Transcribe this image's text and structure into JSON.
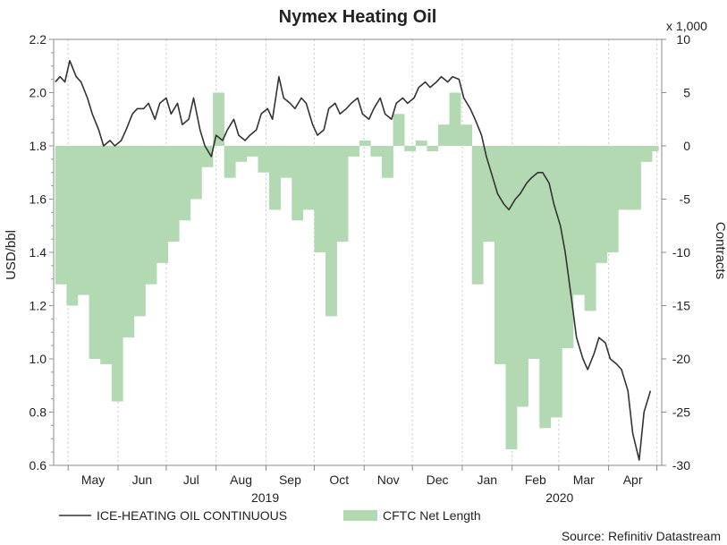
{
  "chart_data": {
    "type": "line+bar",
    "title": "Nymex Heating Oil",
    "y_left_label": "USD/bbl",
    "y_right_label": "Contracts",
    "y_right_multiplier": "x 1,000",
    "y_left_ticks": [
      "0.6",
      "0.8",
      "1.0",
      "1.2",
      "1.4",
      "1.6",
      "1.8",
      "2.0",
      "2.2"
    ],
    "y_right_ticks": [
      "-30",
      "-25",
      "-20",
      "-15",
      "-10",
      "-5",
      "0",
      "5",
      "10"
    ],
    "ylim_left": [
      0.6,
      2.2
    ],
    "ylim_right": [
      -30,
      10
    ],
    "x_month_labels": [
      "May",
      "Jun",
      "Jul",
      "Aug",
      "Sep",
      "Oct",
      "Nov",
      "Dec",
      "Jan",
      "Feb",
      "Mar",
      "Apr"
    ],
    "x_year_labels": [
      "2019",
      "2020"
    ],
    "grid": true,
    "legend_position": "bottom",
    "source": "Source: Refinitiv Datastream",
    "colors": {
      "line": "#333333",
      "bar": "#b3d9b3",
      "grid": "#c8c8c8"
    },
    "series": [
      {
        "name": "ICE-HEATING OIL CONTINUOUS",
        "type": "line",
        "axis": "left",
        "x": [
          "2019-04-23",
          "2019-04-26",
          "2019-04-29",
          "2019-05-02",
          "2019-05-06",
          "2019-05-09",
          "2019-05-13",
          "2019-05-16",
          "2019-05-20",
          "2019-05-23",
          "2019-05-27",
          "2019-05-30",
          "2019-06-03",
          "2019-06-06",
          "2019-06-10",
          "2019-06-13",
          "2019-06-17",
          "2019-06-20",
          "2019-06-24",
          "2019-06-27",
          "2019-07-01",
          "2019-07-04",
          "2019-07-08",
          "2019-07-11",
          "2019-07-15",
          "2019-07-18",
          "2019-07-22",
          "2019-07-25",
          "2019-07-29",
          "2019-08-01",
          "2019-08-05",
          "2019-08-08",
          "2019-08-12",
          "2019-08-15",
          "2019-08-19",
          "2019-08-22",
          "2019-08-26",
          "2019-08-29",
          "2019-09-02",
          "2019-09-05",
          "2019-09-09",
          "2019-09-12",
          "2019-09-16",
          "2019-09-19",
          "2019-09-23",
          "2019-09-26",
          "2019-09-30",
          "2019-10-03",
          "2019-10-07",
          "2019-10-10",
          "2019-10-14",
          "2019-10-17",
          "2019-10-21",
          "2019-10-24",
          "2019-10-28",
          "2019-10-31",
          "2019-11-04",
          "2019-11-07",
          "2019-11-11",
          "2019-11-14",
          "2019-11-18",
          "2019-11-21",
          "2019-11-25",
          "2019-11-28",
          "2019-12-02",
          "2019-12-05",
          "2019-12-09",
          "2019-12-12",
          "2019-12-16",
          "2019-12-19",
          "2019-12-23",
          "2019-12-26",
          "2019-12-30",
          "2020-01-02",
          "2020-01-06",
          "2020-01-09",
          "2020-01-13",
          "2020-01-16",
          "2020-01-20",
          "2020-01-23",
          "2020-01-27",
          "2020-01-30",
          "2020-02-03",
          "2020-02-06",
          "2020-02-10",
          "2020-02-13",
          "2020-02-17",
          "2020-02-20",
          "2020-02-24",
          "2020-02-27",
          "2020-03-02",
          "2020-03-05",
          "2020-03-09",
          "2020-03-12",
          "2020-03-16",
          "2020-03-19",
          "2020-03-23",
          "2020-03-26",
          "2020-03-30",
          "2020-04-02",
          "2020-04-06",
          "2020-04-09",
          "2020-04-13",
          "2020-04-16",
          "2020-04-20",
          "2020-04-23",
          "2020-04-27"
        ],
        "values": [
          2.04,
          2.06,
          2.04,
          2.12,
          2.06,
          2.04,
          1.98,
          1.92,
          1.86,
          1.8,
          1.82,
          1.8,
          1.82,
          1.86,
          1.92,
          1.94,
          1.94,
          1.96,
          1.9,
          1.96,
          1.98,
          1.92,
          1.96,
          1.88,
          1.9,
          1.98,
          1.86,
          1.8,
          1.76,
          1.84,
          1.82,
          1.86,
          1.9,
          1.84,
          1.82,
          1.84,
          1.86,
          1.92,
          1.94,
          1.9,
          2.06,
          1.98,
          1.96,
          1.94,
          1.98,
          1.96,
          1.88,
          1.84,
          1.86,
          1.94,
          1.96,
          1.92,
          1.94,
          1.96,
          1.98,
          1.92,
          1.9,
          1.94,
          1.98,
          1.92,
          1.9,
          1.96,
          1.98,
          1.96,
          1.98,
          2.02,
          2.04,
          2.02,
          2.04,
          2.06,
          2.04,
          2.06,
          2.05,
          1.98,
          1.94,
          1.9,
          1.84,
          1.76,
          1.68,
          1.62,
          1.58,
          1.56,
          1.6,
          1.62,
          1.66,
          1.68,
          1.7,
          1.7,
          1.66,
          1.58,
          1.5,
          1.4,
          1.22,
          1.08,
          1.0,
          0.96,
          1.02,
          1.08,
          1.06,
          1.0,
          0.98,
          0.96,
          0.88,
          0.72,
          0.62,
          0.8,
          0.88
        ]
      },
      {
        "name": "CFTC Net Length",
        "type": "bar",
        "axis": "right",
        "x": [
          "2019-04-23",
          "2019-04-30",
          "2019-05-07",
          "2019-05-14",
          "2019-05-21",
          "2019-05-28",
          "2019-06-04",
          "2019-06-11",
          "2019-06-18",
          "2019-06-25",
          "2019-07-02",
          "2019-07-09",
          "2019-07-16",
          "2019-07-23",
          "2019-07-30",
          "2019-08-06",
          "2019-08-13",
          "2019-08-20",
          "2019-08-27",
          "2019-09-03",
          "2019-09-10",
          "2019-09-17",
          "2019-09-24",
          "2019-10-01",
          "2019-10-08",
          "2019-10-15",
          "2019-10-22",
          "2019-10-29",
          "2019-11-05",
          "2019-11-12",
          "2019-11-19",
          "2019-11-26",
          "2019-12-03",
          "2019-12-10",
          "2019-12-17",
          "2019-12-24",
          "2019-12-31",
          "2020-01-07",
          "2020-01-14",
          "2020-01-21",
          "2020-01-28",
          "2020-02-04",
          "2020-02-11",
          "2020-02-18",
          "2020-02-25",
          "2020-03-03",
          "2020-03-10",
          "2020-03-17",
          "2020-03-24",
          "2020-03-31",
          "2020-04-07",
          "2020-04-14",
          "2020-04-21",
          "2020-04-28"
        ],
        "values": [
          -13,
          -15,
          -14,
          -20,
          -20.5,
          -24,
          -18,
          -16,
          -13,
          -11,
          -9,
          -7,
          -5,
          -2,
          5,
          -3,
          -1.5,
          -1,
          -2.5,
          -6,
          -3,
          -7,
          -6,
          -10,
          -16,
          -9,
          -1,
          0.5,
          -1,
          -3,
          3,
          -0.5,
          0.5,
          -0.5,
          2,
          5,
          2,
          -13,
          -9,
          -20.5,
          -28.5,
          -24.5,
          -20,
          -26.5,
          -25.5,
          -19,
          -14,
          -15.5,
          -11,
          -10,
          -6,
          -6,
          -1.5,
          -0.5
        ]
      }
    ]
  }
}
